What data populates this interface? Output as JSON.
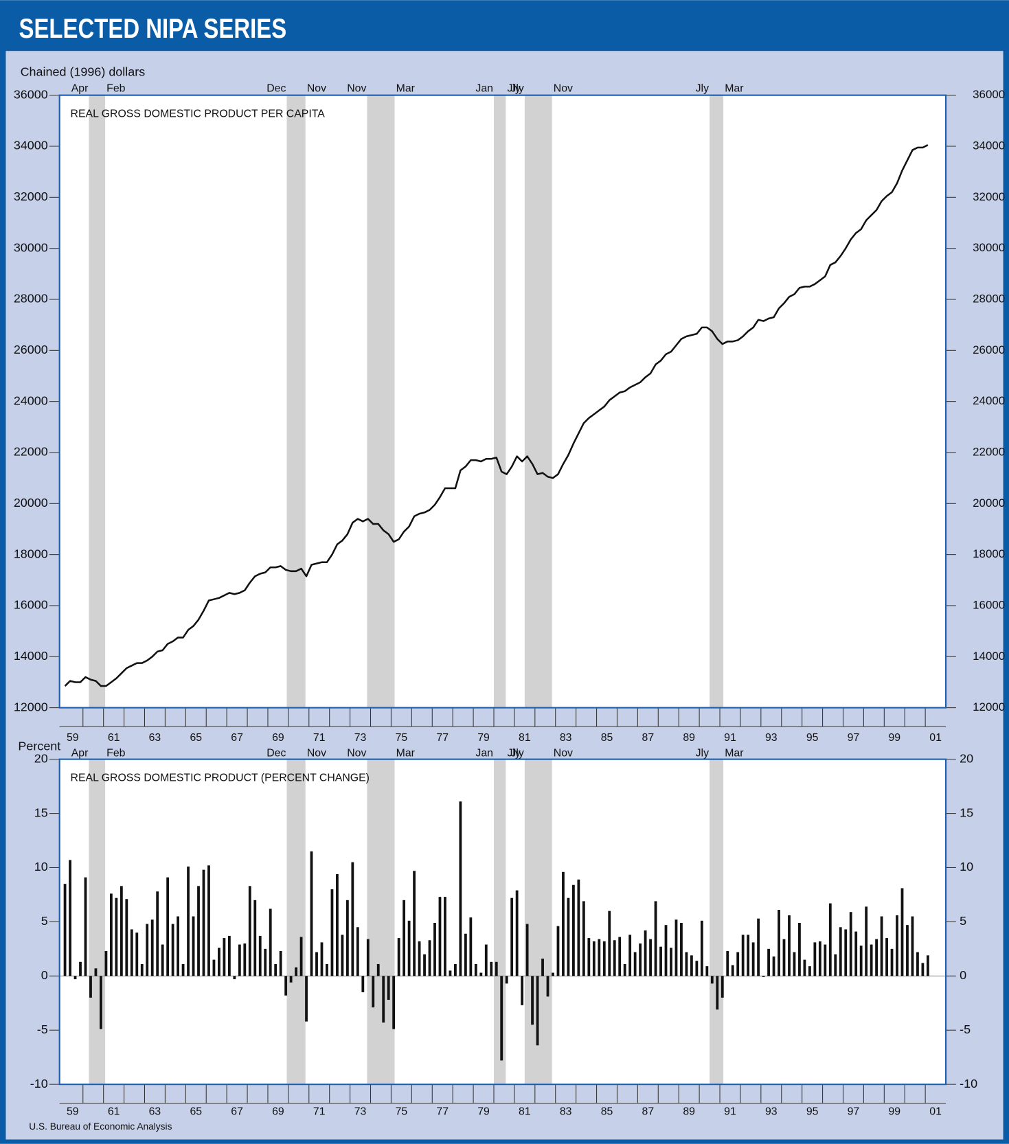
{
  "header": {
    "title": "SELECTED NIPA SERIES"
  },
  "source": "U.S. Bureau of Economic Analysis",
  "chart_data": [
    {
      "type": "line",
      "title": "REAL GROSS DOMESTIC PRODUCT PER CAPITA",
      "y_label": "Chained (1996) dollars",
      "color": "#111111",
      "recession_color": "#d2d2d2",
      "recessions": [
        {
          "start": 1960.29,
          "end": 1961.08,
          "start_label": "Apr",
          "end_label": "Feb"
        },
        {
          "start": 1969.92,
          "end": 1970.83,
          "start_label": "Dec",
          "end_label": "Nov"
        },
        {
          "start": 1973.83,
          "end": 1975.17,
          "start_label": "Nov",
          "end_label": "Mar"
        },
        {
          "start": 1980.0,
          "end": 1980.58,
          "start_label": "Jan",
          "end_label": "Jly"
        },
        {
          "start": 1981.5,
          "end": 1982.83,
          "start_label": "Jly",
          "end_label": "Nov"
        },
        {
          "start": 1990.5,
          "end": 1991.17,
          "start_label": "Jly",
          "end_label": "Mar"
        }
      ],
      "x": [
        1959.125,
        1959.375,
        1959.625,
        1959.875,
        1960.125,
        1960.375,
        1960.625,
        1960.875,
        1961.125,
        1961.375,
        1961.625,
        1961.875,
        1962.125,
        1962.375,
        1962.625,
        1962.875,
        1963.125,
        1963.375,
        1963.625,
        1963.875,
        1964.125,
        1964.375,
        1964.625,
        1964.875,
        1965.125,
        1965.375,
        1965.625,
        1965.875,
        1966.125,
        1966.375,
        1966.625,
        1966.875,
        1967.125,
        1967.375,
        1967.625,
        1967.875,
        1968.125,
        1968.375,
        1968.625,
        1968.875,
        1969.125,
        1969.375,
        1969.625,
        1969.875,
        1970.125,
        1970.375,
        1970.625,
        1970.875,
        1971.125,
        1971.375,
        1971.625,
        1971.875,
        1972.125,
        1972.375,
        1972.625,
        1972.875,
        1973.125,
        1973.375,
        1973.625,
        1973.875,
        1974.125,
        1974.375,
        1974.625,
        1974.875,
        1975.125,
        1975.375,
        1975.625,
        1975.875,
        1976.125,
        1976.375,
        1976.625,
        1976.875,
        1977.125,
        1977.375,
        1977.625,
        1977.875,
        1978.125,
        1978.375,
        1978.625,
        1978.875,
        1979.125,
        1979.375,
        1979.625,
        1979.875,
        1980.125,
        1980.375,
        1980.625,
        1980.875,
        1981.125,
        1981.375,
        1981.625,
        1981.875,
        1982.125,
        1982.375,
        1982.625,
        1982.875,
        1983.125,
        1983.375,
        1983.625,
        1983.875,
        1984.125,
        1984.375,
        1984.625,
        1984.875,
        1985.125,
        1985.375,
        1985.625,
        1985.875,
        1986.125,
        1986.375,
        1986.625,
        1986.875,
        1987.125,
        1987.375,
        1987.625,
        1987.875,
        1988.125,
        1988.375,
        1988.625,
        1988.875,
        1989.125,
        1989.375,
        1989.625,
        1989.875,
        1990.125,
        1990.375,
        1990.625,
        1990.875,
        1991.125,
        1991.375,
        1991.625,
        1991.875,
        1992.125,
        1992.375,
        1992.625,
        1992.875,
        1993.125,
        1993.375,
        1993.625,
        1993.875,
        1994.125,
        1994.375,
        1994.625,
        1994.875,
        1995.125,
        1995.375,
        1995.625,
        1995.875,
        1996.125,
        1996.375,
        1996.625,
        1996.875,
        1997.125,
        1997.375,
        1997.625,
        1997.875,
        1998.125,
        1998.375,
        1998.625,
        1998.875,
        1999.125,
        1999.375,
        1999.625,
        1999.875,
        2000.125,
        2000.375,
        2000.625,
        2000.875,
        2001.125
      ],
      "values": [
        12850,
        13050,
        13000,
        13000,
        13200,
        13100,
        13050,
        12850,
        12850,
        13000,
        13150,
        13350,
        13550,
        13650,
        13750,
        13750,
        13850,
        14000,
        14200,
        14250,
        14500,
        14600,
        14750,
        14750,
        15050,
        15200,
        15450,
        15800,
        16200,
        16250,
        16300,
        16400,
        16500,
        16450,
        16500,
        16600,
        16900,
        17150,
        17250,
        17300,
        17500,
        17500,
        17550,
        17400,
        17350,
        17350,
        17450,
        17150,
        17600,
        17650,
        17700,
        17700,
        18000,
        18400,
        18550,
        18800,
        19250,
        19400,
        19300,
        19400,
        19200,
        19200,
        18950,
        18800,
        18500,
        18600,
        18900,
        19100,
        19500,
        19600,
        19650,
        19750,
        19950,
        20250,
        20600,
        20600,
        20600,
        21300,
        21450,
        21700,
        21700,
        21650,
        21750,
        21750,
        21800,
        21250,
        21150,
        21450,
        21850,
        21650,
        21850,
        21550,
        21150,
        21200,
        21050,
        21000,
        21150,
        21550,
        21900,
        22350,
        22750,
        23150,
        23350,
        23500,
        23650,
        23800,
        24050,
        24200,
        24350,
        24400,
        24550,
        24650,
        24750,
        24950,
        25100,
        25450,
        25600,
        25850,
        25950,
        26200,
        26450,
        26550,
        26600,
        26650,
        26900,
        26900,
        26750,
        26450,
        26250,
        26350,
        26350,
        26400,
        26550,
        26750,
        26900,
        27200,
        27150,
        27250,
        27300,
        27650,
        27850,
        28100,
        28200,
        28450,
        28500,
        28500,
        28600,
        28750,
        28900,
        29350,
        29450,
        29700,
        30000,
        30350,
        30600,
        30750,
        31100,
        31300,
        31500,
        31850,
        32050,
        32200,
        32550,
        33050,
        33450,
        33850,
        33950,
        33950,
        34050
      ],
      "xlim": [
        1958.86,
        2002.0
      ],
      "xticks": [
        {
          "value": 1959.5,
          "label": "59"
        },
        {
          "value": 1961.5,
          "label": "61"
        },
        {
          "value": 1963.5,
          "label": "63"
        },
        {
          "value": 1965.5,
          "label": "65"
        },
        {
          "value": 1967.5,
          "label": "67"
        },
        {
          "value": 1969.5,
          "label": "69"
        },
        {
          "value": 1971.5,
          "label": "71"
        },
        {
          "value": 1973.5,
          "label": "73"
        },
        {
          "value": 1975.5,
          "label": "75"
        },
        {
          "value": 1977.5,
          "label": "77"
        },
        {
          "value": 1979.5,
          "label": "79"
        },
        {
          "value": 1981.5,
          "label": "81"
        },
        {
          "value": 1983.5,
          "label": "83"
        },
        {
          "value": 1985.5,
          "label": "85"
        },
        {
          "value": 1987.5,
          "label": "87"
        },
        {
          "value": 1989.5,
          "label": "89"
        },
        {
          "value": 1991.5,
          "label": "91"
        },
        {
          "value": 1993.5,
          "label": "93"
        },
        {
          "value": 1995.5,
          "label": "95"
        },
        {
          "value": 1997.5,
          "label": "97"
        },
        {
          "value": 1999.5,
          "label": "99"
        },
        {
          "value": 2001.5,
          "label": "01"
        }
      ],
      "xticks_minor": [
        1960,
        1961,
        1962,
        1963,
        1964,
        1965,
        1966,
        1967,
        1968,
        1969,
        1970,
        1971,
        1972,
        1973,
        1974,
        1975,
        1976,
        1977,
        1978,
        1979,
        1980,
        1981,
        1982,
        1983,
        1984,
        1985,
        1986,
        1987,
        1988,
        1989,
        1990,
        1991,
        1992,
        1993,
        1994,
        1995,
        1996,
        1997,
        1998,
        1999,
        2000,
        2001
      ],
      "ylim": [
        12000,
        36000
      ],
      "yticks": [
        12000,
        14000,
        16000,
        18000,
        20000,
        22000,
        24000,
        26000,
        28000,
        30000,
        32000,
        34000,
        36000
      ],
      "y2lim": [
        12000,
        36000
      ],
      "y2ticks": [
        12000,
        14000,
        16000,
        18000,
        20000,
        22000,
        24000,
        26000,
        28000,
        30000,
        32000,
        34000,
        36000
      ]
    },
    {
      "type": "bar",
      "title": "REAL GROSS DOMESTIC PRODUCT (PERCENT CHANGE)",
      "y_label": "Percent",
      "color": "#111111",
      "recession_color": "#d2d2d2",
      "recessions": [
        {
          "start": 1960.29,
          "end": 1961.08,
          "start_label": "Apr",
          "end_label": "Feb"
        },
        {
          "start": 1969.92,
          "end": 1970.83,
          "start_label": "Dec",
          "end_label": "Nov"
        },
        {
          "start": 1973.83,
          "end": 1975.17,
          "start_label": "Nov",
          "end_label": "Mar"
        },
        {
          "start": 1980.0,
          "end": 1980.58,
          "start_label": "Jan",
          "end_label": "Jly"
        },
        {
          "start": 1981.5,
          "end": 1982.83,
          "start_label": "Jly",
          "end_label": "Nov"
        },
        {
          "start": 1990.5,
          "end": 1991.17,
          "start_label": "Jly",
          "end_label": "Mar"
        }
      ],
      "x": [
        1959.125,
        1959.375,
        1959.625,
        1959.875,
        1960.125,
        1960.375,
        1960.625,
        1960.875,
        1961.125,
        1961.375,
        1961.625,
        1961.875,
        1962.125,
        1962.375,
        1962.625,
        1962.875,
        1963.125,
        1963.375,
        1963.625,
        1963.875,
        1964.125,
        1964.375,
        1964.625,
        1964.875,
        1965.125,
        1965.375,
        1965.625,
        1965.875,
        1966.125,
        1966.375,
        1966.625,
        1966.875,
        1967.125,
        1967.375,
        1967.625,
        1967.875,
        1968.125,
        1968.375,
        1968.625,
        1968.875,
        1969.125,
        1969.375,
        1969.625,
        1969.875,
        1970.125,
        1970.375,
        1970.625,
        1970.875,
        1971.125,
        1971.375,
        1971.625,
        1971.875,
        1972.125,
        1972.375,
        1972.625,
        1972.875,
        1973.125,
        1973.375,
        1973.625,
        1973.875,
        1974.125,
        1974.375,
        1974.625,
        1974.875,
        1975.125,
        1975.375,
        1975.625,
        1975.875,
        1976.125,
        1976.375,
        1976.625,
        1976.875,
        1977.125,
        1977.375,
        1977.625,
        1977.875,
        1978.125,
        1978.375,
        1978.625,
        1978.875,
        1979.125,
        1979.375,
        1979.625,
        1979.875,
        1980.125,
        1980.375,
        1980.625,
        1980.875,
        1981.125,
        1981.375,
        1981.625,
        1981.875,
        1982.125,
        1982.375,
        1982.625,
        1982.875,
        1983.125,
        1983.375,
        1983.625,
        1983.875,
        1984.125,
        1984.375,
        1984.625,
        1984.875,
        1985.125,
        1985.375,
        1985.625,
        1985.875,
        1986.125,
        1986.375,
        1986.625,
        1986.875,
        1987.125,
        1987.375,
        1987.625,
        1987.875,
        1988.125,
        1988.375,
        1988.625,
        1988.875,
        1989.125,
        1989.375,
        1989.625,
        1989.875,
        1990.125,
        1990.375,
        1990.625,
        1990.875,
        1991.125,
        1991.375,
        1991.625,
        1991.875,
        1992.125,
        1992.375,
        1992.625,
        1992.875,
        1993.125,
        1993.375,
        1993.625,
        1993.875,
        1994.125,
        1994.375,
        1994.625,
        1994.875,
        1995.125,
        1995.375,
        1995.625,
        1995.875,
        1996.125,
        1996.375,
        1996.625,
        1996.875,
        1997.125,
        1997.375,
        1997.625,
        1997.875,
        1998.125,
        1998.375,
        1998.625,
        1998.875,
        1999.125,
        1999.375,
        1999.625,
        1999.875,
        2000.125,
        2000.375,
        2000.625,
        2000.875,
        2001.125
      ],
      "values": [
        8.5,
        10.7,
        -0.3,
        1.3,
        9.1,
        -2.0,
        0.7,
        -4.9,
        2.3,
        7.6,
        7.2,
        8.3,
        7.1,
        4.3,
        4.0,
        1.1,
        4.8,
        5.2,
        7.8,
        2.9,
        9.1,
        4.8,
        5.5,
        1.1,
        10.1,
        5.5,
        8.3,
        9.8,
        10.2,
        1.5,
        2.6,
        3.5,
        3.7,
        -0.3,
        2.9,
        3.0,
        8.3,
        7.0,
        3.7,
        2.5,
        6.2,
        1.1,
        2.3,
        -1.8,
        -0.6,
        0.8,
        3.6,
        -4.2,
        11.5,
        2.2,
        3.1,
        1.1,
        8.0,
        9.4,
        3.8,
        7.0,
        10.5,
        4.5,
        -1.5,
        3.4,
        -2.9,
        1.1,
        -4.3,
        -2.2,
        -4.9,
        3.5,
        7.0,
        5.1,
        9.7,
        3.2,
        2.0,
        3.3,
        4.9,
        7.3,
        7.3,
        0.5,
        1.1,
        16.1,
        3.9,
        5.4,
        1.1,
        0.3,
        2.9,
        1.3,
        1.3,
        -7.8,
        -0.7,
        7.2,
        7.9,
        -2.7,
        4.8,
        -4.5,
        -6.4,
        1.6,
        -1.9,
        0.3,
        4.6,
        9.6,
        7.2,
        8.4,
        8.9,
        6.9,
        3.5,
        3.2,
        3.4,
        3.2,
        6.0,
        3.3,
        3.6,
        1.1,
        3.8,
        2.2,
        3.0,
        4.2,
        3.4,
        6.9,
        2.7,
        4.7,
        2.6,
        5.2,
        4.9,
        2.2,
        1.9,
        1.4,
        5.1,
        0.9,
        -0.7,
        -3.1,
        -2.0,
        2.3,
        1.0,
        2.2,
        3.8,
        3.8,
        3.1,
        5.3,
        -0.1,
        2.5,
        1.8,
        6.1,
        3.4,
        5.6,
        2.2,
        4.9,
        1.5,
        0.9,
        3.1,
        3.2,
        2.9,
        6.7,
        2.0,
        4.5,
        4.3,
        5.9,
        4.1,
        2.8,
        6.4,
        2.9,
        3.4,
        5.5,
        3.5,
        2.5,
        5.6,
        8.1,
        4.7,
        5.5,
        2.2,
        1.2,
        1.9
      ],
      "xlim": [
        1958.86,
        2002.0
      ],
      "xticks": [
        {
          "value": 1959.5,
          "label": "59"
        },
        {
          "value": 1961.5,
          "label": "61"
        },
        {
          "value": 1963.5,
          "label": "63"
        },
        {
          "value": 1965.5,
          "label": "65"
        },
        {
          "value": 1967.5,
          "label": "67"
        },
        {
          "value": 1969.5,
          "label": "69"
        },
        {
          "value": 1971.5,
          "label": "71"
        },
        {
          "value": 1973.5,
          "label": "73"
        },
        {
          "value": 1975.5,
          "label": "75"
        },
        {
          "value": 1977.5,
          "label": "77"
        },
        {
          "value": 1979.5,
          "label": "79"
        },
        {
          "value": 1981.5,
          "label": "81"
        },
        {
          "value": 1983.5,
          "label": "83"
        },
        {
          "value": 1985.5,
          "label": "85"
        },
        {
          "value": 1987.5,
          "label": "87"
        },
        {
          "value": 1989.5,
          "label": "89"
        },
        {
          "value": 1991.5,
          "label": "91"
        },
        {
          "value": 1993.5,
          "label": "93"
        },
        {
          "value": 1995.5,
          "label": "95"
        },
        {
          "value": 1997.5,
          "label": "97"
        },
        {
          "value": 1999.5,
          "label": "99"
        },
        {
          "value": 2001.5,
          "label": "01"
        }
      ],
      "xticks_minor": [
        1960,
        1961,
        1962,
        1963,
        1964,
        1965,
        1966,
        1967,
        1968,
        1969,
        1970,
        1971,
        1972,
        1973,
        1974,
        1975,
        1976,
        1977,
        1978,
        1979,
        1980,
        1981,
        1982,
        1983,
        1984,
        1985,
        1986,
        1987,
        1988,
        1989,
        1990,
        1991,
        1992,
        1993,
        1994,
        1995,
        1996,
        1997,
        1998,
        1999,
        2000,
        2001
      ],
      "ylim": [
        -10,
        20
      ],
      "yticks": [
        -10,
        -5,
        0,
        5,
        10,
        15,
        20
      ],
      "y2lim": [
        -10,
        20
      ],
      "y2ticks": [
        -10,
        -5,
        0,
        5,
        10,
        15,
        20
      ]
    }
  ]
}
